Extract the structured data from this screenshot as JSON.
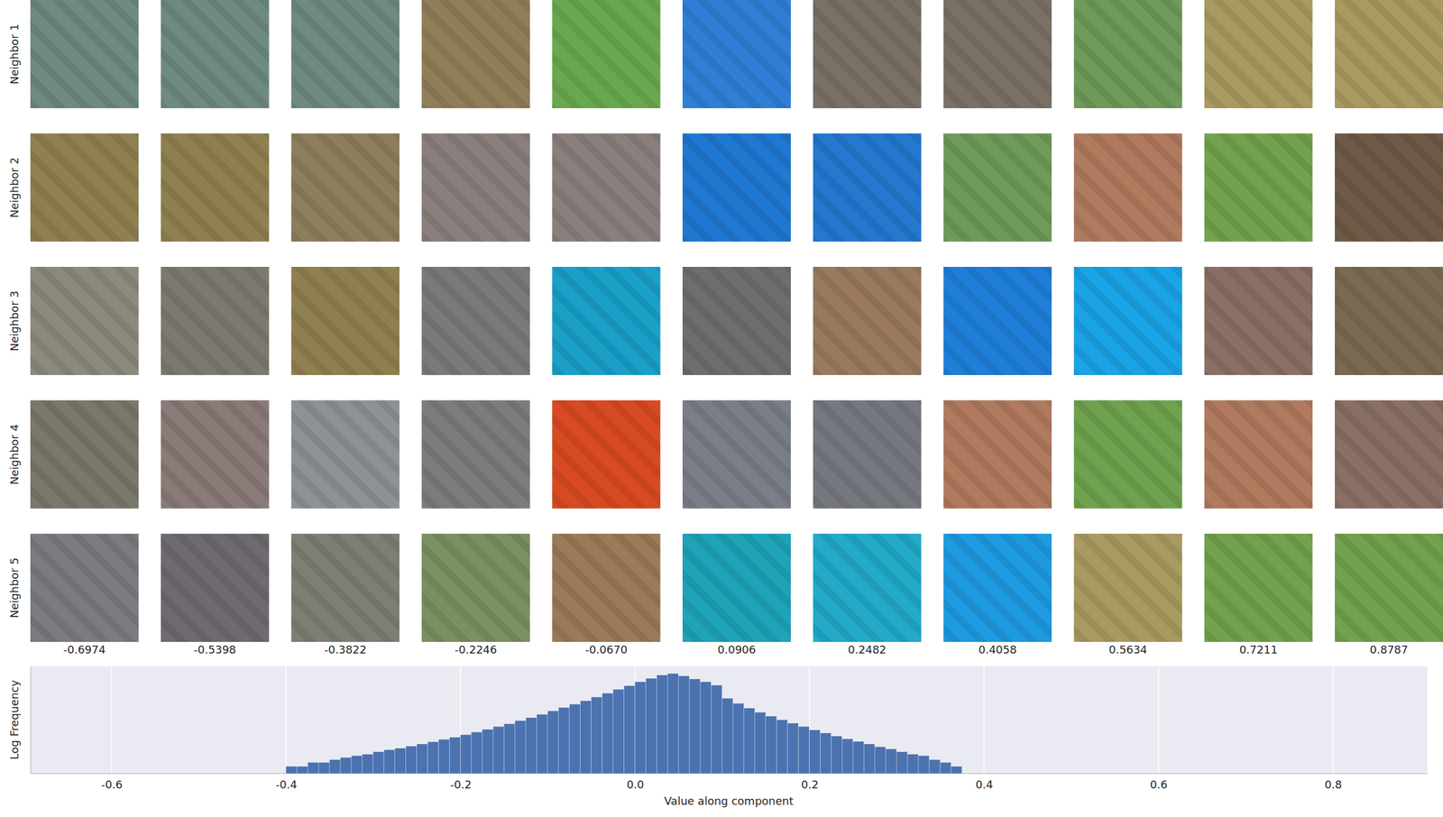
{
  "chart_data": {
    "type": "histogram",
    "x_label": "Value along component",
    "y_label": "Log Frequency",
    "bins": [
      -0.4,
      -0.3875,
      -0.375,
      -0.3625,
      -0.35,
      -0.3375,
      -0.325,
      -0.3125,
      -0.3,
      -0.2875,
      -0.275,
      -0.2625,
      -0.25,
      -0.2375,
      -0.225,
      -0.2125,
      -0.2,
      -0.1875,
      -0.175,
      -0.1625,
      -0.15,
      -0.1375,
      -0.125,
      -0.1125,
      -0.1,
      -0.0875,
      -0.075,
      -0.0625,
      -0.05,
      -0.0375,
      -0.025,
      -0.0125,
      0,
      0.0125,
      0.025,
      0.0375,
      0.05,
      0.0625,
      0.075,
      0.0875,
      0.1,
      0.1125,
      0.125,
      0.1375,
      0.15,
      0.1625,
      0.175,
      0.1875,
      0.2,
      0.2125,
      0.225,
      0.2375,
      0.25,
      0.2625,
      0.275,
      0.2875,
      0.3,
      0.3125,
      0.325,
      0.3375,
      0.35,
      0.3625,
      0.375
    ],
    "counts": [
      2,
      2,
      3,
      3,
      4,
      5,
      6,
      7,
      9,
      11,
      13,
      16,
      20,
      25,
      32,
      40,
      52,
      68,
      90,
      120,
      160,
      220,
      300,
      420,
      600,
      850,
      1200,
      1700,
      2500,
      3700,
      5500,
      8000,
      12000,
      17000,
      24000,
      28000,
      22000,
      16000,
      12000,
      8500,
      2200,
      1300,
      800,
      520,
      350,
      240,
      170,
      120,
      85,
      62,
      45,
      34,
      26,
      20,
      15,
      12,
      9,
      7,
      6,
      4,
      3,
      2
    ],
    "color": "#4c72b0",
    "xlim": [
      -0.693,
      0.908
    ],
    "xticks": [
      -0.6,
      -0.4,
      -0.2,
      {
        "value": 0,
        "label": "0.0"
      },
      0.2,
      0.4,
      0.6,
      0.8
    ],
    "ylim": [
      1,
      60000
    ],
    "log": "y",
    "grid": true,
    "tick_labels": "x",
    "patches": {
      "row_labels": [
        "Neighbor 1",
        "Neighbor 2",
        "Neighbor 3",
        "Neighbor 4",
        "Neighbor 5"
      ],
      "column_values": [
        -0.6974,
        -0.5398,
        -0.3822,
        -0.2246,
        {
          "value": -0.067,
          "label": "-0.0670"
        },
        0.0906,
        0.2482,
        0.4058,
        0.5634,
        0.7211,
        0.8787
      ],
      "colors": [
        [
          "#6f8a80",
          "#6f8a80",
          "#6f8a80",
          "#8f7e58",
          "#6aa84f",
          "#2f7fd6",
          "#7a7066",
          "#7a7066",
          "#6f9a5a",
          "#a89a60",
          "#a89a60"
        ],
        [
          "#8f8050",
          "#8f8050",
          "#8d7e5c",
          "#8a7f7c",
          "#8a7f7c",
          "#1f78d1",
          "#2478cf",
          "#6f9a5a",
          "#b07a5e",
          "#72a24e",
          "#6e5a46"
        ],
        [
          "#8c8a7c",
          "#7c7a70",
          "#8f8050",
          "#7a7a78",
          "#1aa0c8",
          "#6e6e6e",
          "#9a7a5e",
          "#1f7fd8",
          "#1aa3e6",
          "#8a6f64",
          "#7a6a52"
        ],
        [
          "#7a786a",
          "#8a7a78",
          "#8e9294",
          "#7c7c7c",
          "#d84a22",
          "#7a7e88",
          "#767880",
          "#b07a5e",
          "#6fa24e",
          "#b07a5e",
          "#8a6f64"
        ],
        [
          "#7a7c80",
          "#6e6a70",
          "#7f7e74",
          "#7a9060",
          "#9a7a58",
          "#1ea3b8",
          "#22aac8",
          "#1e9ae0",
          "#a89a60",
          "#72a24e",
          "#72a24e"
        ]
      ]
    }
  }
}
